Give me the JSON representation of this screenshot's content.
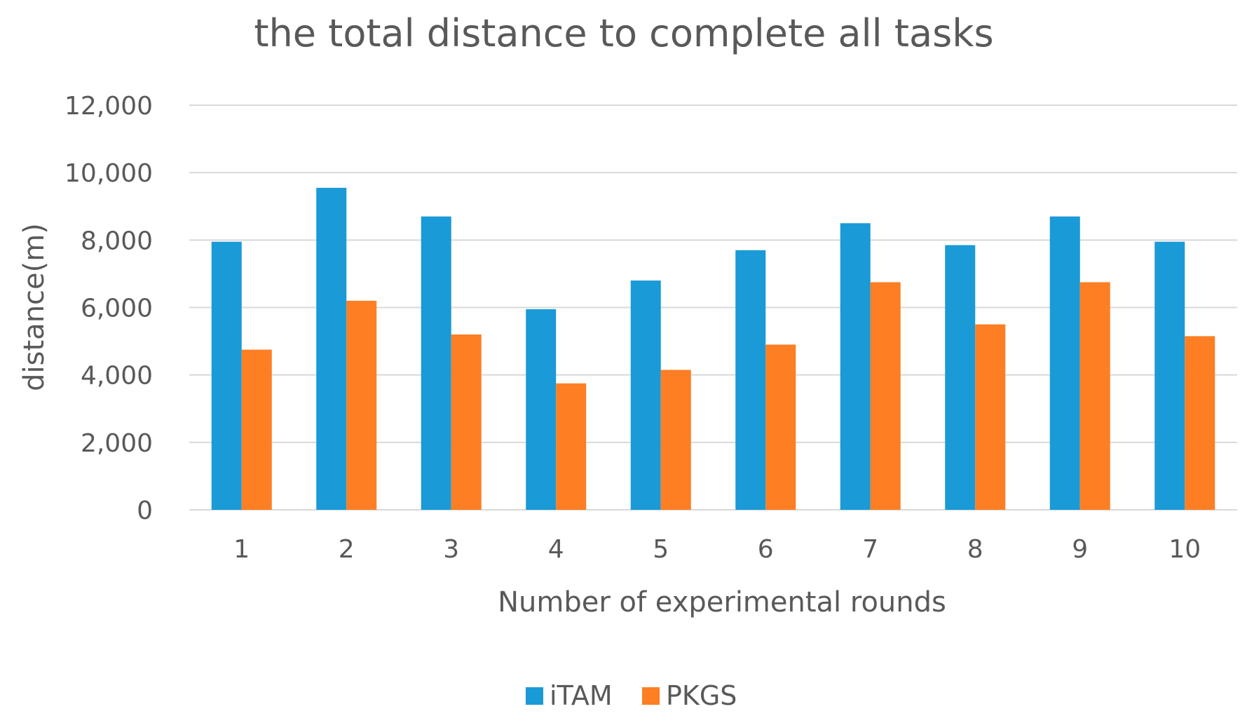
{
  "chart_data": {
    "type": "bar",
    "title": "the total distance to complete all tasks",
    "xlabel": "Number of experimental rounds",
    "ylabel": "distance(m)",
    "categories": [
      "1",
      "2",
      "3",
      "4",
      "5",
      "6",
      "7",
      "8",
      "9",
      "10"
    ],
    "series": [
      {
        "name": "iTAM",
        "color": "#1a9ad6",
        "values": [
          7950,
          9550,
          8700,
          5950,
          6800,
          7700,
          8500,
          7850,
          8700,
          7950
        ]
      },
      {
        "name": "PKGS",
        "color": "#fd7e23",
        "values": [
          4750,
          6200,
          5200,
          3750,
          4150,
          4900,
          6750,
          5500,
          6750,
          5150
        ]
      }
    ],
    "ylim": [
      0,
      12000
    ],
    "yticks": [
      0,
      2000,
      4000,
      6000,
      8000,
      10000,
      12000
    ],
    "ytick_labels": [
      "0",
      "2,000",
      "4,000",
      "6,000",
      "8,000",
      "10,000",
      "12,000"
    ],
    "grid": true,
    "legend_position": "bottom"
  }
}
